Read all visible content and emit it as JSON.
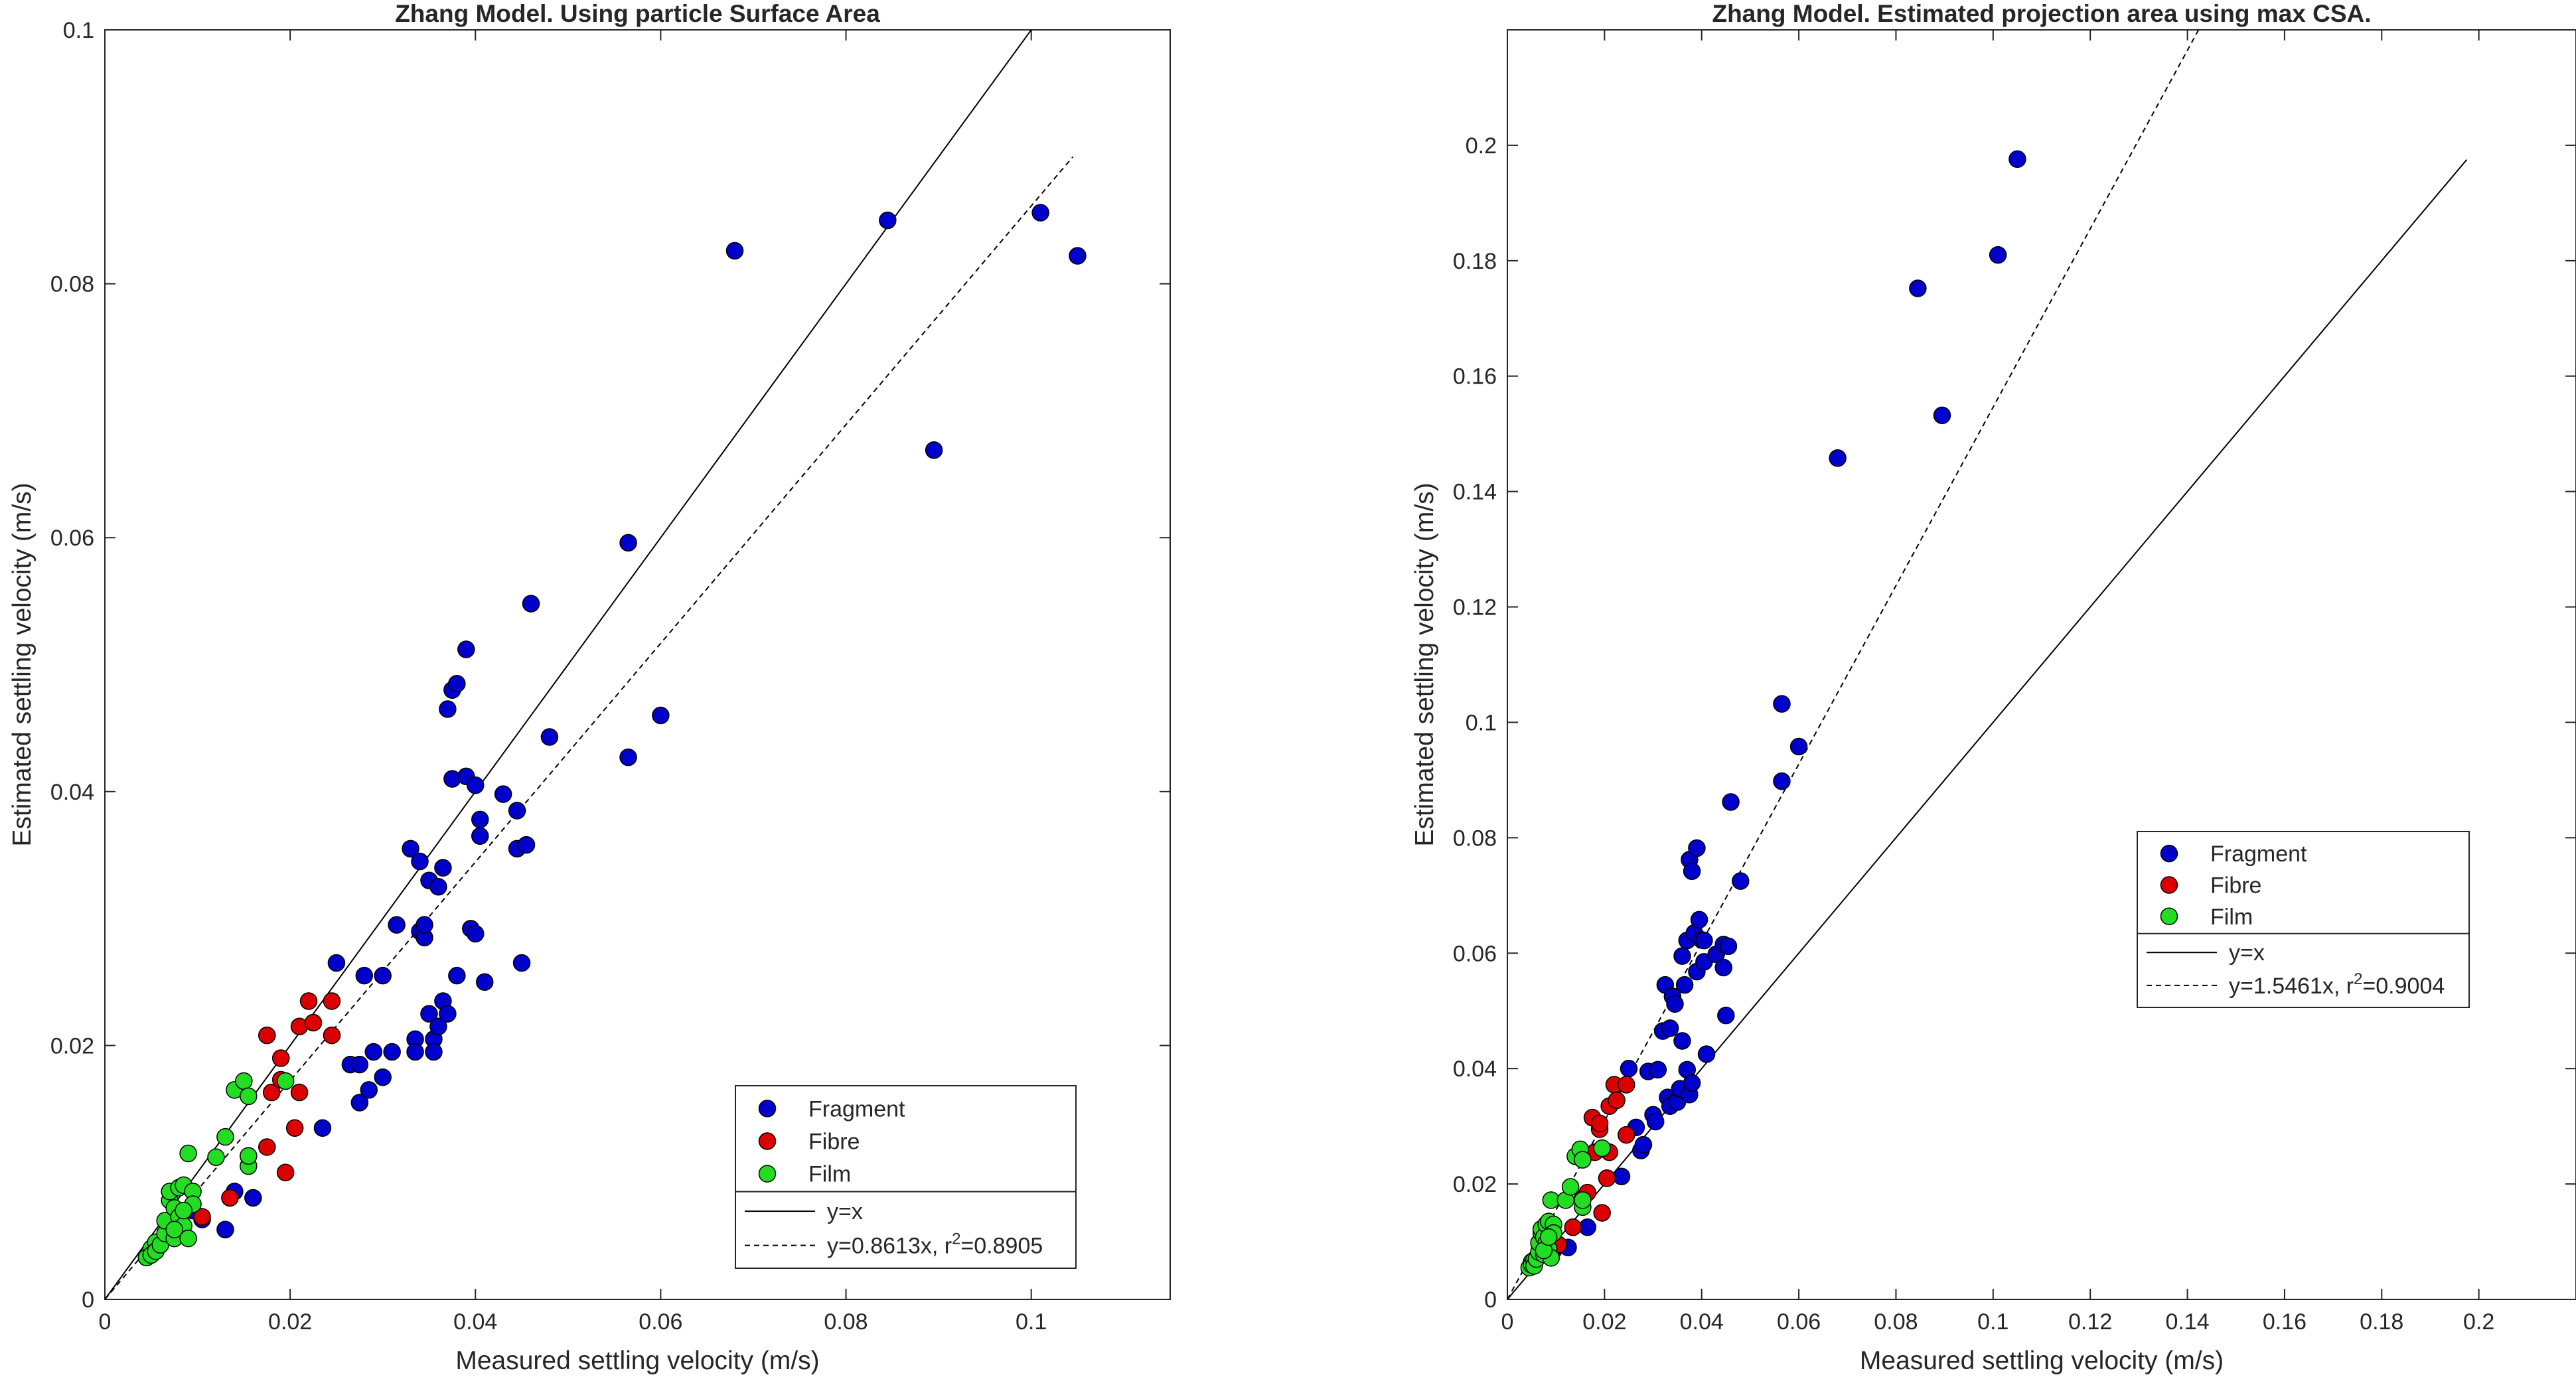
{
  "chart_data": [
    {
      "type": "scatter",
      "title": "Zhang Model. Using particle Surface Area",
      "xlabel": "Measured settling velocity (m/s)",
      "ylabel": "Estimated settling velocity (m/s)",
      "xlim": [
        0,
        0.115
      ],
      "ylim": [
        0,
        0.1
      ],
      "xticks": [
        0,
        0.02,
        0.04,
        0.06,
        0.08,
        0.1
      ],
      "yticks": [
        0,
        0.02,
        0.04,
        0.06,
        0.08,
        0.1
      ],
      "xtick_labels": [
        "0",
        "0.02",
        "0.04",
        "0.06",
        "0.08",
        "0.1"
      ],
      "ytick_labels": [
        "0",
        "0.02",
        "0.04",
        "0.06",
        "0.08",
        "0.1"
      ],
      "legend_position": "bottom-right",
      "grid": false,
      "series": [
        {
          "name": "Fragment",
          "color": "#0000cc",
          "points": [
            [
              0.0105,
              0.0063
            ],
            [
              0.013,
              0.0055
            ],
            [
              0.014,
              0.0085
            ],
            [
              0.016,
              0.008
            ],
            [
              0.0095,
              0.007
            ],
            [
              0.0235,
              0.0135
            ],
            [
              0.025,
              0.0265
            ],
            [
              0.0265,
              0.0185
            ],
            [
              0.0275,
              0.0185
            ],
            [
              0.0275,
              0.0155
            ],
            [
              0.028,
              0.0255
            ],
            [
              0.0285,
              0.0165
            ],
            [
              0.029,
              0.0195
            ],
            [
              0.03,
              0.0255
            ],
            [
              0.03,
              0.0175
            ],
            [
              0.031,
              0.0195
            ],
            [
              0.0315,
              0.0295
            ],
            [
              0.033,
              0.0355
            ],
            [
              0.0335,
              0.0205
            ],
            [
              0.0335,
              0.0195
            ],
            [
              0.034,
              0.0345
            ],
            [
              0.034,
              0.029
            ],
            [
              0.0345,
              0.0285
            ],
            [
              0.0345,
              0.0295
            ],
            [
              0.035,
              0.033
            ],
            [
              0.035,
              0.0225
            ],
            [
              0.0355,
              0.0205
            ],
            [
              0.0355,
              0.0195
            ],
            [
              0.036,
              0.0215
            ],
            [
              0.036,
              0.0325
            ],
            [
              0.0365,
              0.0235
            ],
            [
              0.0365,
              0.034
            ],
            [
              0.037,
              0.0225
            ],
            [
              0.037,
              0.0465
            ],
            [
              0.0375,
              0.041
            ],
            [
              0.0375,
              0.048
            ],
            [
              0.038,
              0.0255
            ],
            [
              0.038,
              0.0485
            ],
            [
              0.039,
              0.0412
            ],
            [
              0.039,
              0.0512
            ],
            [
              0.0395,
              0.0292
            ],
            [
              0.04,
              0.0288
            ],
            [
              0.04,
              0.0405
            ],
            [
              0.0405,
              0.0365
            ],
            [
              0.0405,
              0.0378
            ],
            [
              0.041,
              0.025
            ],
            [
              0.043,
              0.0398
            ],
            [
              0.0445,
              0.0385
            ],
            [
              0.0445,
              0.0355
            ],
            [
              0.045,
              0.0265
            ],
            [
              0.0455,
              0.0358
            ],
            [
              0.046,
              0.0548
            ],
            [
              0.048,
              0.0443
            ],
            [
              0.0565,
              0.0596
            ],
            [
              0.0565,
              0.0427
            ],
            [
              0.06,
              0.046
            ],
            [
              0.068,
              0.0826
            ],
            [
              0.0845,
              0.085
            ],
            [
              0.0895,
              0.0669
            ],
            [
              0.101,
              0.0856
            ],
            [
              0.105,
              0.0822
            ]
          ]
        },
        {
          "name": "Fibre",
          "color": "#dd0000",
          "points": [
            [
              0.0105,
              0.0065
            ],
            [
              0.0135,
              0.008
            ],
            [
              0.0155,
              0.0113
            ],
            [
              0.0175,
              0.012
            ],
            [
              0.0175,
              0.0208
            ],
            [
              0.018,
              0.0163
            ],
            [
              0.019,
              0.0173
            ],
            [
              0.019,
              0.019
            ],
            [
              0.0195,
              0.01
            ],
            [
              0.0205,
              0.0135
            ],
            [
              0.021,
              0.0215
            ],
            [
              0.021,
              0.0163
            ],
            [
              0.022,
              0.0235
            ],
            [
              0.0225,
              0.0218
            ],
            [
              0.0245,
              0.0235
            ],
            [
              0.0245,
              0.0208
            ]
          ]
        },
        {
          "name": "Film",
          "color": "#22dd22",
          "points": [
            [
              0.0045,
              0.0033
            ],
            [
              0.005,
              0.004
            ],
            [
              0.005,
              0.0035
            ],
            [
              0.0055,
              0.0045
            ],
            [
              0.0055,
              0.0038
            ],
            [
              0.006,
              0.0043
            ],
            [
              0.0065,
              0.0052
            ],
            [
              0.0065,
              0.0062
            ],
            [
              0.007,
              0.0078
            ],
            [
              0.007,
              0.0085
            ],
            [
              0.0075,
              0.0072
            ],
            [
              0.0075,
              0.0048
            ],
            [
              0.008,
              0.0065
            ],
            [
              0.008,
              0.0088
            ],
            [
              0.0085,
              0.009
            ],
            [
              0.0085,
              0.0058
            ],
            [
              0.009,
              0.0048
            ],
            [
              0.009,
              0.0115
            ],
            [
              0.0095,
              0.0085
            ],
            [
              0.0095,
              0.0075
            ],
            [
              0.0075,
              0.0055
            ],
            [
              0.0085,
              0.007
            ],
            [
              0.012,
              0.0112
            ],
            [
              0.013,
              0.0128
            ],
            [
              0.014,
              0.0165
            ],
            [
              0.015,
              0.0172
            ],
            [
              0.0155,
              0.0105
            ],
            [
              0.0155,
              0.0113
            ],
            [
              0.0155,
              0.016
            ],
            [
              0.0195,
              0.0172
            ]
          ]
        }
      ],
      "lines": [
        {
          "name": "y=x",
          "style": "solid",
          "slope": 1,
          "x_range": [
            0,
            0.105
          ]
        },
        {
          "name": "y=0.8613x, r",
          "sup": "2",
          "tail": "=0.8905",
          "style": "dashed",
          "slope": 0.8613,
          "x_range": [
            0,
            0.1045
          ]
        }
      ]
    },
    {
      "type": "scatter",
      "title": "Zhang Model. Estimated projection area using max CSA.",
      "xlabel": "Measured settling velocity (m/s)",
      "ylabel": "Estimated settling velocity (m/s)",
      "xlim": [
        0,
        0.22
      ],
      "ylim": [
        0,
        0.22
      ],
      "xticks": [
        0,
        0.02,
        0.04,
        0.06,
        0.08,
        0.1,
        0.12,
        0.14,
        0.16,
        0.18,
        0.2
      ],
      "yticks": [
        0,
        0.02,
        0.04,
        0.06,
        0.08,
        0.1,
        0.12,
        0.14,
        0.16,
        0.18,
        0.2
      ],
      "xtick_labels": [
        "0",
        "0.02",
        "0.04",
        "0.06",
        "0.08",
        "0.1",
        "0.12",
        "0.14",
        "0.16",
        "0.18",
        "0.2"
      ],
      "ytick_labels": [
        "0",
        "0.02",
        "0.04",
        "0.06",
        "0.08",
        "0.1",
        "0.12",
        "0.14",
        "0.16",
        "0.18",
        "0.2"
      ],
      "legend_position": "right",
      "grid": false,
      "series": [
        {
          "name": "Fragment",
          "color": "#0000cc",
          "points": [
            [
              0.0095,
              0.0085
            ],
            [
              0.0105,
              0.0095
            ],
            [
              0.0125,
              0.009
            ],
            [
              0.0165,
              0.0125
            ],
            [
              0.0235,
              0.0213
            ],
            [
              0.025,
              0.04
            ],
            [
              0.0265,
              0.0298
            ],
            [
              0.0275,
              0.0258
            ],
            [
              0.028,
              0.0268
            ],
            [
              0.029,
              0.0395
            ],
            [
              0.03,
              0.032
            ],
            [
              0.0305,
              0.0308
            ],
            [
              0.031,
              0.0398
            ],
            [
              0.032,
              0.0465
            ],
            [
              0.0325,
              0.0545
            ],
            [
              0.033,
              0.035
            ],
            [
              0.0335,
              0.0335
            ],
            [
              0.0335,
              0.047
            ],
            [
              0.034,
              0.0525
            ],
            [
              0.0345,
              0.0512
            ],
            [
              0.035,
              0.0345
            ],
            [
              0.035,
              0.0342
            ],
            [
              0.0355,
              0.0365
            ],
            [
              0.036,
              0.0595
            ],
            [
              0.036,
              0.0448
            ],
            [
              0.0365,
              0.0545
            ],
            [
              0.037,
              0.0622
            ],
            [
              0.037,
              0.0398
            ],
            [
              0.0375,
              0.0355
            ],
            [
              0.0375,
              0.0762
            ],
            [
              0.038,
              0.0742
            ],
            [
              0.038,
              0.0375
            ],
            [
              0.0385,
              0.0635
            ],
            [
              0.039,
              0.0782
            ],
            [
              0.039,
              0.0568
            ],
            [
              0.0395,
              0.0658
            ],
            [
              0.04,
              0.0623
            ],
            [
              0.0405,
              0.0585
            ],
            [
              0.0405,
              0.0622
            ],
            [
              0.041,
              0.0425
            ],
            [
              0.043,
              0.0598
            ],
            [
              0.0445,
              0.0615
            ],
            [
              0.0445,
              0.0575
            ],
            [
              0.045,
              0.0492
            ],
            [
              0.0455,
              0.0612
            ],
            [
              0.046,
              0.0862
            ],
            [
              0.048,
              0.0725
            ],
            [
              0.0565,
              0.1032
            ],
            [
              0.0565,
              0.0898
            ],
            [
              0.06,
              0.0958
            ],
            [
              0.068,
              0.1458
            ],
            [
              0.0845,
              0.1752
            ],
            [
              0.0895,
              0.1532
            ],
            [
              0.101,
              0.181
            ],
            [
              0.105,
              0.1976
            ]
          ]
        },
        {
          "name": "Fibre",
          "color": "#dd0000",
          "points": [
            [
              0.0105,
              0.0095
            ],
            [
              0.0135,
              0.0125
            ],
            [
              0.0155,
              0.0175
            ],
            [
              0.0165,
              0.0185
            ],
            [
              0.0175,
              0.0315
            ],
            [
              0.018,
              0.0255
            ],
            [
              0.019,
              0.0295
            ],
            [
              0.019,
              0.0305
            ],
            [
              0.0195,
              0.015
            ],
            [
              0.0205,
              0.021
            ],
            [
              0.021,
              0.0335
            ],
            [
              0.021,
              0.0255
            ],
            [
              0.022,
              0.0372
            ],
            [
              0.0225,
              0.0345
            ],
            [
              0.0245,
              0.0372
            ],
            [
              0.0245,
              0.0285
            ]
          ]
        },
        {
          "name": "Film",
          "color": "#22dd22",
          "points": [
            [
              0.0045,
              0.0055
            ],
            [
              0.005,
              0.0065
            ],
            [
              0.005,
              0.006
            ],
            [
              0.0055,
              0.0068
            ],
            [
              0.0055,
              0.0058
            ],
            [
              0.006,
              0.007
            ],
            [
              0.0065,
              0.0082
            ],
            [
              0.0065,
              0.0098
            ],
            [
              0.007,
              0.0115
            ],
            [
              0.007,
              0.0122
            ],
            [
              0.0075,
              0.0108
            ],
            [
              0.0075,
              0.0078
            ],
            [
              0.008,
              0.0098
            ],
            [
              0.008,
              0.013
            ],
            [
              0.0085,
              0.0135
            ],
            [
              0.0085,
              0.0088
            ],
            [
              0.009,
              0.0072
            ],
            [
              0.009,
              0.0172
            ],
            [
              0.0095,
              0.013
            ],
            [
              0.0095,
              0.0115
            ],
            [
              0.0075,
              0.0085
            ],
            [
              0.0085,
              0.0108
            ],
            [
              0.012,
              0.0172
            ],
            [
              0.013,
              0.0195
            ],
            [
              0.014,
              0.0248
            ],
            [
              0.015,
              0.026
            ],
            [
              0.0155,
              0.016
            ],
            [
              0.0155,
              0.0172
            ],
            [
              0.0155,
              0.0242
            ],
            [
              0.0195,
              0.0262
            ]
          ]
        }
      ],
      "lines": [
        {
          "name": "y=x",
          "style": "solid",
          "slope": 1,
          "x_range": [
            0,
            0.1975
          ]
        },
        {
          "name": "y=1.5461x, r",
          "sup": "2",
          "tail": "=0.9004",
          "style": "dashed",
          "slope": 1.5461,
          "x_range": [
            0,
            0.1423
          ]
        }
      ]
    }
  ]
}
